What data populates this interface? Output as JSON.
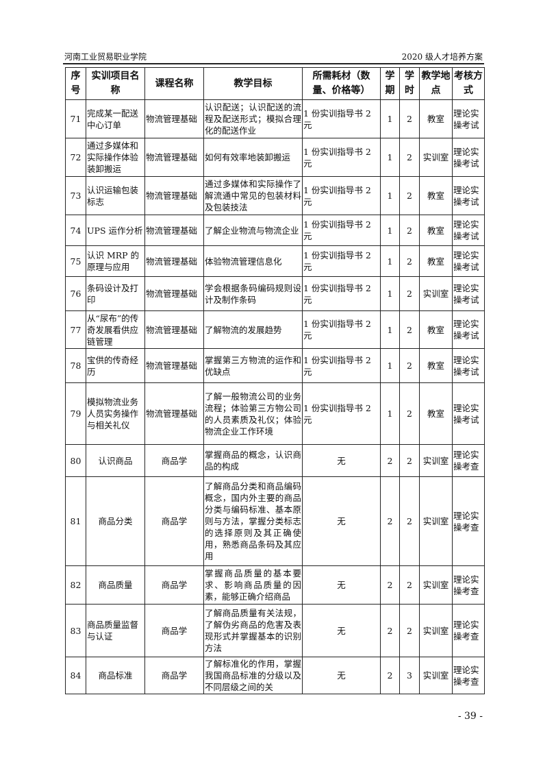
{
  "header": {
    "left": "河南工业贸易职业学院",
    "right": "2020 级人才培养方案"
  },
  "table": {
    "columns": [
      "序号",
      "实训项目名称",
      "课程名称",
      "教学目标",
      "所需耗材（数量、价格等）",
      "学期",
      "学时",
      "教学地点",
      "考核方式"
    ],
    "rows": [
      {
        "no": "71",
        "project": "完成某一配送中心订单",
        "course": "物流管理基础",
        "goal": "认识配送；认识配送的流程及配送形式；模拟合理化的配送作业",
        "material": "1 份实训指导书 2 元",
        "term": "1",
        "hours": "2",
        "place": "教室",
        "exam": "理论实操考试"
      },
      {
        "no": "72",
        "project": "通过多媒体和实际操作体验装卸搬运",
        "course": "物流管理基础",
        "goal": "如何有效率地装卸搬运",
        "material": "1 份实训指导书 2 元",
        "term": "1",
        "hours": "2",
        "place": "实训室",
        "exam": "理论实操考试"
      },
      {
        "no": "73",
        "project": "认识运输包装标志",
        "course": "物流管理基础",
        "goal": "通过多媒体和实际操作了解流通中常见的包装材料及包装技法",
        "material": "1 份实训指导书 2 元",
        "term": "1",
        "hours": "2",
        "place": "教室",
        "exam": "理论实操考试"
      },
      {
        "no": "74",
        "project": "UPS 运作分析",
        "course": "物流管理基础",
        "goal": "了解企业物流与物流企业",
        "material": "1 份实训指导书 2 元",
        "term": "1",
        "hours": "2",
        "place": "教室",
        "exam": "理论实操考试"
      },
      {
        "no": "75",
        "project": "认识 MRP 的原理与应用",
        "course": "物流管理基础",
        "goal": "体验物流管理信息化",
        "material": "1 份实训指导书 2 元",
        "term": "1",
        "hours": "2",
        "place": "教室",
        "exam": "理论实操考试"
      },
      {
        "no": "76",
        "project": "条码设计及打印",
        "course": "物流管理基础",
        "goal": "学会根据条码编码规则设计及制作条码",
        "material": "1 份实训指导书 2 元",
        "term": "1",
        "hours": "2",
        "place": "实训室",
        "exam": "理论实操考试"
      },
      {
        "no": "77",
        "project": "从“尿布”的传奇发展看供应链管理",
        "course": "物流管理基础",
        "goal": "了解物流的发展趋势",
        "material": "1 份实训指导书 2 元",
        "term": "1",
        "hours": "2",
        "place": "教室",
        "exam": "理论实操考试"
      },
      {
        "no": "78",
        "project": "宝供的传奇经历",
        "course": "物流管理基础",
        "goal": "掌握第三方物流的运作和优缺点",
        "material": "1 份实训指导书 2 元",
        "term": "1",
        "hours": "2",
        "place": "教室",
        "exam": "理论实操考试"
      },
      {
        "no": "79",
        "project": "模拟物流业务人员实务操作与相关礼仪",
        "course": "物流管理基础",
        "goal": "了解一般物流公司的业务流程；体验第三方物公司的人员素质及礼仪；体验物流企业工作环境",
        "material": "1 份实训指导书 2 元",
        "term": "1",
        "hours": "2",
        "place": "教室",
        "exam": "理论实操考试"
      },
      {
        "no": "80",
        "project": "认识商品",
        "course": "商品学",
        "goal": "掌握商品的概念，认识商品的构成",
        "material": "无",
        "term": "2",
        "hours": "2",
        "place": "实训室",
        "exam": "理论实操考查"
      },
      {
        "no": "81",
        "project": "商品分类",
        "course": "商品学",
        "goal": "了解商品分类和商品编码概念，国内外主要的商品分类与编码标准、基本原则与方法，掌握分类标志的选择原则及其正确使用，熟悉商品条码及其应用",
        "material": "无",
        "term": "2",
        "hours": "2",
        "place": "实训室",
        "exam": "理论实操考查"
      },
      {
        "no": "82",
        "project": "商品质量",
        "course": "商品学",
        "goal": "掌握商品质量的基本要求、影响商品质量的因素，能够正确介绍商品",
        "material": "无",
        "term": "2",
        "hours": "2",
        "place": "实训室",
        "exam": "理论实操考查"
      },
      {
        "no": "83",
        "project": "商品质量监督与认证",
        "course": "商品学",
        "goal": "了解商品质量有关法规，了解伪劣商品的危害及表现形式并掌握基本的识别方法",
        "material": "无",
        "term": "2",
        "hours": "2",
        "place": "实训室",
        "exam": "理论实操考查"
      },
      {
        "no": "84",
        "project": "商品标准",
        "course": "商品学",
        "goal": "了解标准化的作用，掌握我国商品标准的分级以及不同层级之间的关",
        "material": "无",
        "term": "2",
        "hours": "3",
        "place": "实训室",
        "exam": "理论实操考查"
      }
    ]
  },
  "footer": {
    "page": "- 39 -"
  }
}
